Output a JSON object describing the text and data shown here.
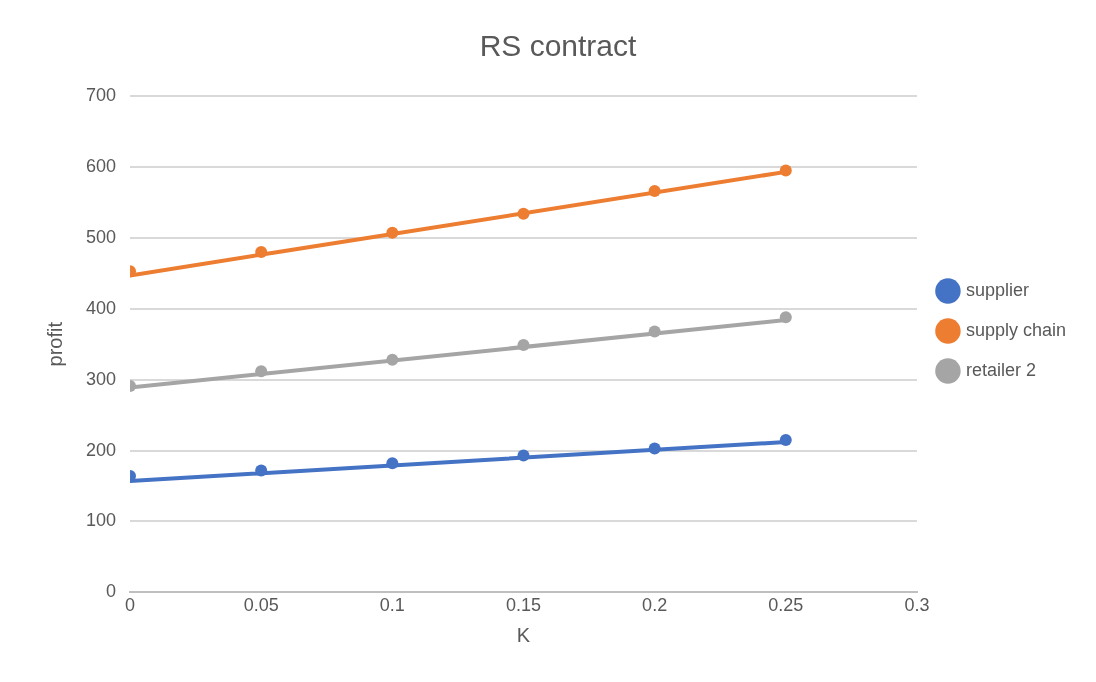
{
  "chart_data": {
    "type": "scatter",
    "title": "RS contract",
    "xlabel": "K",
    "ylabel": "profit",
    "x": [
      0,
      0.05,
      0.1,
      0.15,
      0.2,
      0.25
    ],
    "series": [
      {
        "name": "supplier",
        "color": "#4472c4",
        "values": [
          164,
          172,
          182,
          193,
          203,
          215
        ]
      },
      {
        "name": "supply chain",
        "color": "#ed7d31",
        "values": [
          453,
          480,
          507,
          534,
          566,
          595
        ]
      },
      {
        "name": "retailer 2",
        "color": "#a5a5a5",
        "values": [
          291,
          312,
          328,
          349,
          368,
          388
        ]
      },
      {
        "type": "line",
        "color": "#4472c4",
        "values": [
          157,
          null,
          null,
          null,
          null,
          212
        ],
        "marker": "none"
      },
      {
        "type": "line",
        "color": "#ed7d31",
        "values": [
          447,
          null,
          null,
          null,
          null,
          593
        ],
        "marker": "none"
      },
      {
        "type": "line",
        "color": "#a5a5a5",
        "values": [
          289,
          null,
          null,
          null,
          null,
          384
        ],
        "marker": "none"
      }
    ],
    "xlim": [
      0,
      0.3
    ],
    "xticks": [
      0,
      0.05,
      0.1,
      0.15,
      0.2,
      0.25,
      0.3
    ],
    "ylim": [
      0,
      700
    ],
    "yticks": [
      0,
      100,
      200,
      300,
      400,
      500,
      600,
      700
    ],
    "grid": "y",
    "legend": "right",
    "marker": "circle",
    "line_style": "solid"
  }
}
